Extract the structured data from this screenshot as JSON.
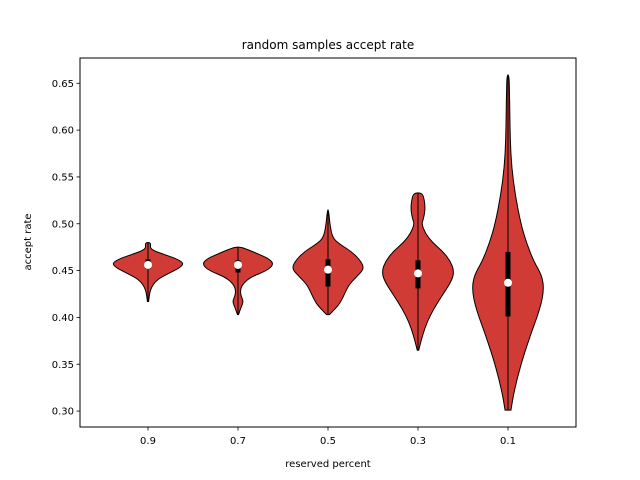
{
  "chart_data": {
    "type": "violin",
    "title": "random samples accept rate",
    "xlabel": "reserved percent",
    "ylabel": "accept rate",
    "ylim": [
      0.283,
      0.677
    ],
    "yticks": [
      "0.30",
      "0.35",
      "0.40",
      "0.45",
      "0.50",
      "0.55",
      "0.60",
      "0.65"
    ],
    "categories": [
      "0.9",
      "0.7",
      "0.5",
      "0.3",
      "0.1"
    ],
    "fill_color": "#d13b35",
    "median_color": "#ffffff",
    "box_color": "#000000",
    "violins": [
      {
        "category": "0.9",
        "min": 0.417,
        "max": 0.48,
        "median": 0.456,
        "q1": 0.452,
        "q3": 0.462,
        "profile": [
          [
            0.417,
            0.002
          ],
          [
            0.43,
            0.008
          ],
          [
            0.44,
            0.03
          ],
          [
            0.447,
            0.075
          ],
          [
            0.453,
            0.115
          ],
          [
            0.458,
            0.13
          ],
          [
            0.463,
            0.1
          ],
          [
            0.468,
            0.05
          ],
          [
            0.472,
            0.015
          ],
          [
            0.475,
            0.008
          ],
          [
            0.478,
            0.01
          ],
          [
            0.48,
            0.006
          ]
        ]
      },
      {
        "category": "0.7",
        "min": 0.403,
        "max": 0.475,
        "median": 0.456,
        "q1": 0.448,
        "q3": 0.461,
        "profile": [
          [
            0.403,
            0.002
          ],
          [
            0.41,
            0.01
          ],
          [
            0.417,
            0.02
          ],
          [
            0.422,
            0.012
          ],
          [
            0.428,
            0.008
          ],
          [
            0.435,
            0.015
          ],
          [
            0.443,
            0.045
          ],
          [
            0.45,
            0.105
          ],
          [
            0.457,
            0.13
          ],
          [
            0.463,
            0.11
          ],
          [
            0.468,
            0.07
          ],
          [
            0.472,
            0.04
          ],
          [
            0.475,
            0.01
          ]
        ]
      },
      {
        "category": "0.5",
        "min": 0.403,
        "max": 0.515,
        "median": 0.451,
        "q1": 0.433,
        "q3": 0.462,
        "profile": [
          [
            0.403,
            0.005
          ],
          [
            0.408,
            0.02
          ],
          [
            0.415,
            0.04
          ],
          [
            0.425,
            0.055
          ],
          [
            0.435,
            0.07
          ],
          [
            0.445,
            0.1
          ],
          [
            0.452,
            0.12
          ],
          [
            0.46,
            0.11
          ],
          [
            0.47,
            0.08
          ],
          [
            0.478,
            0.04
          ],
          [
            0.485,
            0.015
          ],
          [
            0.5,
            0.006
          ],
          [
            0.515,
            0.002
          ]
        ]
      },
      {
        "category": "0.3",
        "min": 0.365,
        "max": 0.533,
        "median": 0.447,
        "q1": 0.431,
        "q3": 0.461,
        "profile": [
          [
            0.365,
            0.002
          ],
          [
            0.38,
            0.012
          ],
          [
            0.395,
            0.025
          ],
          [
            0.41,
            0.045
          ],
          [
            0.425,
            0.07
          ],
          [
            0.44,
            0.095
          ],
          [
            0.45,
            0.1
          ],
          [
            0.46,
            0.09
          ],
          [
            0.47,
            0.07
          ],
          [
            0.48,
            0.04
          ],
          [
            0.49,
            0.02
          ],
          [
            0.5,
            0.01
          ],
          [
            0.505,
            0.015
          ],
          [
            0.515,
            0.02
          ],
          [
            0.525,
            0.018
          ],
          [
            0.533,
            0.012
          ]
        ]
      },
      {
        "category": "0.1",
        "min": 0.301,
        "max": 0.659,
        "median": 0.437,
        "q1": 0.401,
        "q3": 0.47,
        "profile": [
          [
            0.301,
            0.008
          ],
          [
            0.32,
            0.016
          ],
          [
            0.35,
            0.035
          ],
          [
            0.38,
            0.06
          ],
          [
            0.41,
            0.088
          ],
          [
            0.43,
            0.098
          ],
          [
            0.445,
            0.092
          ],
          [
            0.46,
            0.07
          ],
          [
            0.48,
            0.05
          ],
          [
            0.5,
            0.035
          ],
          [
            0.53,
            0.02
          ],
          [
            0.56,
            0.01
          ],
          [
            0.59,
            0.006
          ],
          [
            0.62,
            0.005
          ],
          [
            0.64,
            0.004
          ],
          [
            0.659,
            0.003
          ]
        ]
      }
    ]
  }
}
